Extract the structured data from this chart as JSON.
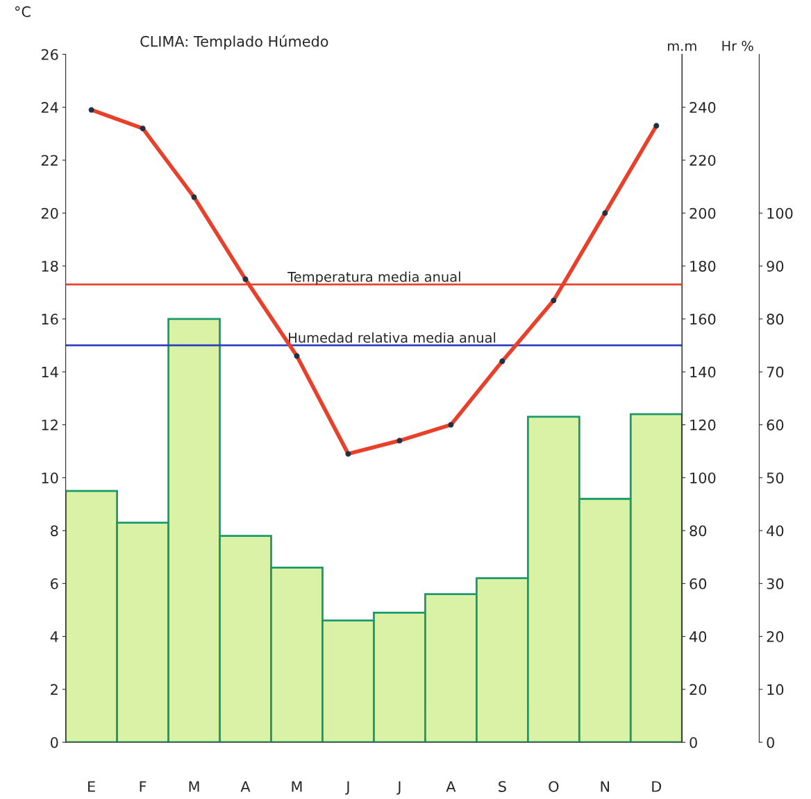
{
  "chart_data": {
    "type": "bar",
    "title": "CLIMA: Templado Húmedo",
    "categories": [
      "E",
      "F",
      "M",
      "A",
      "M",
      "J",
      "J",
      "A",
      "S",
      "O",
      "N",
      "D"
    ],
    "ylabel": "°C",
    "y2label": "m.m",
    "y3label": "Hr %",
    "series": [
      {
        "axis": "y2",
        "color": "#d9f2a6",
        "values": [
          95,
          83,
          160,
          78,
          66,
          46,
          49,
          56,
          62,
          123,
          92,
          124
        ]
      },
      {
        "type": "line",
        "axis": "y",
        "color": "#e8402a",
        "marker": "circle",
        "values": [
          23.9,
          23.2,
          20.6,
          17.5,
          14.6,
          10.9,
          11.4,
          12.0,
          14.4,
          16.7,
          20.0,
          23.3
        ]
      }
    ],
    "ylim": [
      0,
      26
    ],
    "yticks": [
      0,
      2,
      4,
      6,
      8,
      10,
      12,
      14,
      16,
      18,
      20,
      22,
      24,
      26
    ],
    "y2lim": [
      0,
      260
    ],
    "y2ticks": [
      0,
      20,
      40,
      60,
      80,
      100,
      120,
      140,
      160,
      180,
      200,
      220,
      240
    ],
    "y3lim": [
      0,
      130
    ],
    "y3ticks": [
      0,
      10,
      20,
      30,
      40,
      50,
      60,
      70,
      80,
      90,
      100
    ],
    "ref_lines": [
      {
        "axis": "y",
        "value": 17.3,
        "label": "Temperatura media anual",
        "color": "#e8402a"
      },
      {
        "axis": "y3",
        "value": 75,
        "label": "Humedad relativa media anual",
        "color": "#2f3fc0"
      }
    ],
    "grid": false,
    "legend": false
  }
}
